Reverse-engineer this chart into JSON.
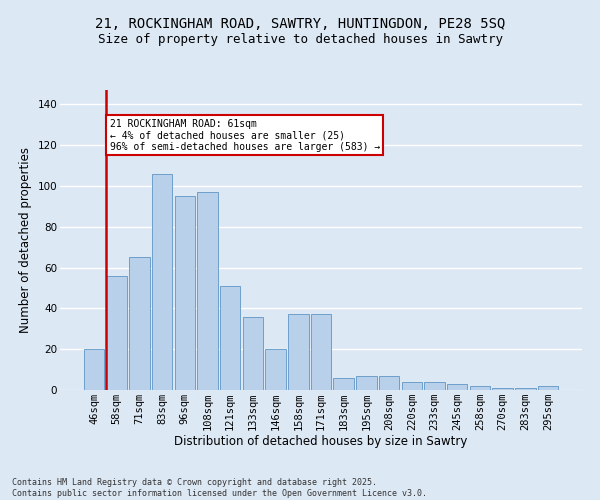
{
  "title_line1": "21, ROCKINGHAM ROAD, SAWTRY, HUNTINGDON, PE28 5SQ",
  "title_line2": "Size of property relative to detached houses in Sawtry",
  "xlabel": "Distribution of detached houses by size in Sawtry",
  "ylabel": "Number of detached properties",
  "categories": [
    "46sqm",
    "58sqm",
    "71sqm",
    "83sqm",
    "96sqm",
    "108sqm",
    "121sqm",
    "133sqm",
    "146sqm",
    "158sqm",
    "171sqm",
    "183sqm",
    "195sqm",
    "208sqm",
    "220sqm",
    "233sqm",
    "245sqm",
    "258sqm",
    "270sqm",
    "283sqm",
    "295sqm"
  ],
  "values": [
    20,
    56,
    65,
    106,
    95,
    97,
    51,
    36,
    20,
    37,
    37,
    6,
    7,
    7,
    4,
    4,
    3,
    2,
    1,
    1,
    2
  ],
  "bar_color": "#b8d0ea",
  "bar_edge_color": "#6da0cb",
  "annotation_box_color": "#cc0000",
  "property_line_color": "#cc0000",
  "property_bar_index": 1,
  "annotation_title": "21 ROCKINGHAM ROAD: 61sqm",
  "annotation_line2": "← 4% of detached houses are smaller (25)",
  "annotation_line3": "96% of semi-detached houses are larger (583) →",
  "footnote1": "Contains HM Land Registry data © Crown copyright and database right 2025.",
  "footnote2": "Contains public sector information licensed under the Open Government Licence v3.0.",
  "ylim": [
    0,
    147
  ],
  "bg_color": "#dde8f5",
  "fig_bg_color": "#dde8f5",
  "grid_color": "#ffffff",
  "title_fontsize": 10,
  "subtitle_fontsize": 9,
  "tick_fontsize": 7.5,
  "ylabel_fontsize": 8.5,
  "xlabel_fontsize": 8.5,
  "footnote_fontsize": 6,
  "yticks": [
    0,
    20,
    40,
    60,
    80,
    100,
    120,
    140
  ]
}
